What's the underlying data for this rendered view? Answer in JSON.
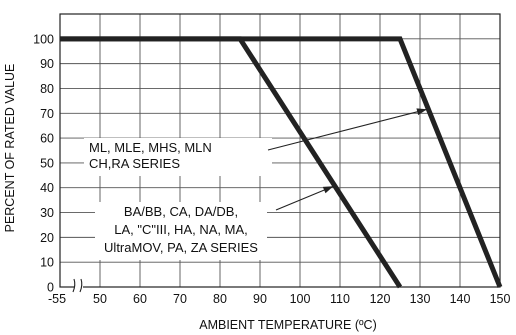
{
  "chart_data": {
    "type": "line",
    "xlabel": "AMBIENT TEMPERATURE (ºC)",
    "ylabel": "PERCENT OF RATED VALUE",
    "x_ticks": [
      "-55",
      "50",
      "60",
      "70",
      "80",
      "90",
      "100",
      "110",
      "120",
      "130",
      "140",
      "150"
    ],
    "x_tick_values": [
      -55,
      50,
      60,
      70,
      80,
      90,
      100,
      110,
      120,
      130,
      140,
      150
    ],
    "y_ticks": [
      "0",
      "10",
      "20",
      "30",
      "40",
      "50",
      "60",
      "70",
      "80",
      "90",
      "100"
    ],
    "y_tick_values": [
      0,
      10,
      20,
      30,
      40,
      50,
      60,
      70,
      80,
      90,
      100
    ],
    "xlim": [
      40,
      150
    ],
    "ylim": [
      0,
      110
    ],
    "axis_break": "x-axis break between -55 and 50",
    "grid": true,
    "series": [
      {
        "label_lines": [
          "ML, MLE, MHS, MLN",
          "CH,RA SERIES"
        ],
        "x": [
          -55,
          125,
          150
        ],
        "y": [
          100,
          100,
          0
        ]
      },
      {
        "label_lines": [
          "BA/BB, CA, DA/DB,",
          "LA, \"C\"III, HA, NA, MA,",
          "UltraMOV, PA, ZA SERIES"
        ],
        "x": [
          -55,
          85,
          125
        ],
        "y": [
          100,
          100,
          0
        ]
      }
    ]
  }
}
